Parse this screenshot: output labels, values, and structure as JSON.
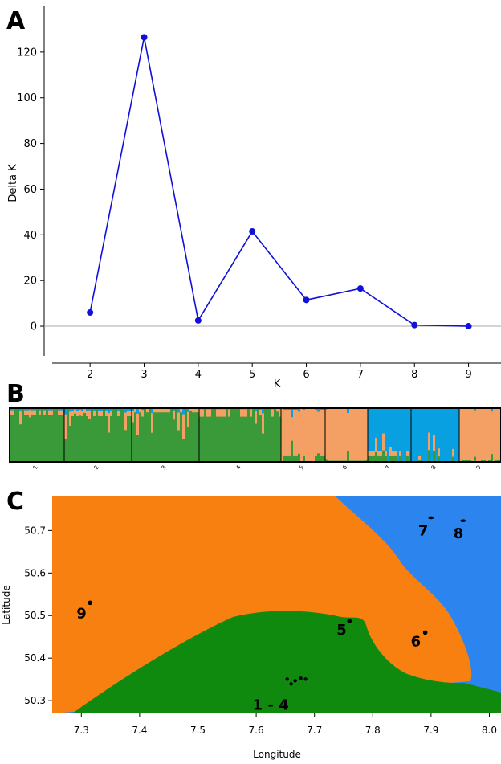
{
  "panels": {
    "a_letter": "A",
    "b_letter": "B",
    "c_letter": "C"
  },
  "chart_data": [
    {
      "type": "line",
      "panel": "A",
      "xlabel": "K",
      "ylabel": "Delta K",
      "x": [
        2,
        3,
        4,
        5,
        6,
        7,
        8,
        9
      ],
      "series": [
        {
          "values": [
            6,
            126.5,
            2.5,
            41.5,
            11.5,
            16.5,
            0.5,
            0
          ]
        }
      ],
      "xticks": [
        "2",
        "3",
        "4",
        "5",
        "6",
        "7",
        "8",
        "9"
      ],
      "yticks": [
        "0",
        "20",
        "40",
        "60",
        "80",
        "100",
        "120"
      ],
      "xlim": [
        1.3,
        9.6
      ],
      "ylim": [
        -13,
        140
      ],
      "reference_line": 0,
      "grid": false,
      "colors": {
        "line": "#1010d8",
        "marker": "#1010d8",
        "reference": "#aaaaaa"
      }
    },
    {
      "type": "bar",
      "panel": "B",
      "subtype": "stacked-admixture",
      "categories": [
        "1",
        "2",
        "3",
        "4",
        "5",
        "6",
        "7",
        "8",
        "9"
      ],
      "series": [
        {
          "color": "#3a9a3a",
          "values": [
            0.88,
            0.85,
            0.92,
            0.84,
            0.12,
            0.02,
            0.12,
            0.0,
            0.03
          ]
        },
        {
          "color": "#f4a064",
          "values": [
            0.08,
            0.1,
            0.08,
            0.14,
            0.85,
            0.97,
            0.08,
            0.0,
            0.96
          ]
        },
        {
          "color": "#08a0e0",
          "values": [
            0.04,
            0.05,
            0.0,
            0.02,
            0.03,
            0.01,
            0.8,
            1.0,
            0.01
          ]
        }
      ],
      "colors": {
        "green": "#3a9a3a",
        "orange": "#f4a064",
        "blue": "#08a0e0"
      }
    },
    {
      "type": "heatmap",
      "panel": "C",
      "xlabel": "Longitude",
      "ylabel": "Latitude",
      "xticks": [
        "7.3",
        "7.4",
        "7.5",
        "7.6",
        "7.7",
        "7.8",
        "7.9",
        "8.0"
      ],
      "yticks": [
        "50.3",
        "50.4",
        "50.5",
        "50.6",
        "50.7"
      ],
      "xlim": [
        7.25,
        8.02
      ],
      "ylim": [
        50.27,
        50.78
      ],
      "regions": [
        "orange",
        "green",
        "blue"
      ],
      "sites": [
        {
          "label": "9",
          "lon": 7.315,
          "lat": 50.53
        },
        {
          "label": "5",
          "lon": 7.76,
          "lat": 50.487
        },
        {
          "label": "6",
          "lon": 7.89,
          "lat": 50.46
        },
        {
          "label": "7",
          "lon": 7.9,
          "lat": 50.73
        },
        {
          "label": "8",
          "lon": 7.955,
          "lat": 50.723
        },
        {
          "label": "1 - 4",
          "lon": 7.66,
          "lat": 50.345
        }
      ],
      "colors": {
        "orange": "#f88010",
        "green": "#0f8a0f",
        "blue": "#2c85ee"
      }
    }
  ]
}
